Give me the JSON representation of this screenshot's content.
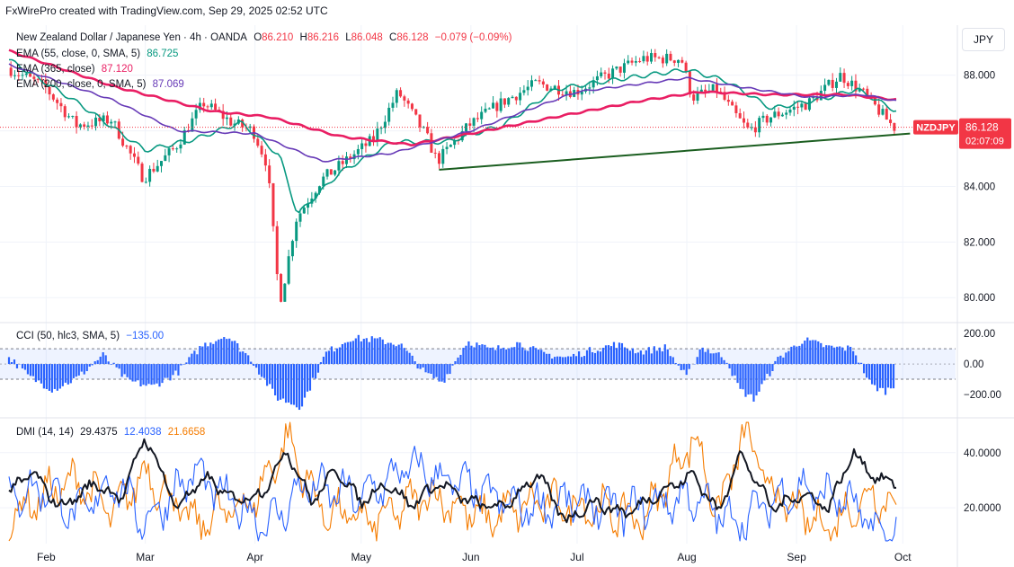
{
  "header": {
    "credit": "FxWirePro created with TradingView.com, Sep 29, 2025 02:52 UTC"
  },
  "legend": {
    "symbol_line": "New Zealand Dollar / Japanese Yen · 4h · OANDA",
    "open_label": "O",
    "open": "86.210",
    "high_label": "H",
    "high": "86.216",
    "low_label": "L",
    "low": "86.048",
    "close_label": "C",
    "close": "86.128",
    "change": "−0.079 (−0.09%)",
    "ema55_label": "EMA (55, close, 0, SMA, 5)",
    "ema55_value": "86.725",
    "ema365_label": "EMA (365, close)",
    "ema365_value": "87.120",
    "ema200_label": "EMA (200, close, 0, SMA, 5)",
    "ema200_value": "87.069",
    "cci_label": "CCI (50, hlc3, SMA, 5)",
    "cci_value": "−135.00",
    "dmi_label": "DMI (14, 14)",
    "dmi_adx": "29.4375",
    "dmi_plus": "12.4038",
    "dmi_minus": "21.6658"
  },
  "currency_button": "JPY",
  "price_tag": {
    "symbol": "NZDJPY",
    "price": "86.128",
    "countdown": "02:07:09"
  },
  "colors": {
    "up": "#089981",
    "down": "#f23645",
    "ema55": "#089981",
    "ema365": "#e91e63",
    "ema200": "#673ab7",
    "trendline": "#1b5e20",
    "cci": "#2962ff",
    "adx": "#131722",
    "di_plus": "#2962ff",
    "di_minus": "#f57c00",
    "grid": "#f0f3fa"
  },
  "chart_data": [
    {
      "type": "candlestick",
      "title": "New Zealand Dollar / Japanese Yen · 4h · OANDA",
      "x_ticks": [
        "Feb",
        "Mar",
        "Apr",
        "May",
        "Jun",
        "Jul",
        "Aug",
        "Sep",
        "Oct"
      ],
      "y_ticks": [
        "80.000",
        "82.000",
        "84.000",
        "86.000",
        "88.000"
      ],
      "ylim": [
        79.2,
        89.8
      ],
      "close_path_approx": [
        {
          "x": "Jan 21",
          "y": 88.3
        },
        {
          "x": "Feb 01",
          "y": 87.6
        },
        {
          "x": "Feb 10",
          "y": 86.2
        },
        {
          "x": "Feb 20",
          "y": 86.4
        },
        {
          "x": "Mar 01",
          "y": 84.3
        },
        {
          "x": "Mar 10",
          "y": 85.4
        },
        {
          "x": "Mar 18",
          "y": 87.0
        },
        {
          "x": "Mar 26",
          "y": 86.3
        },
        {
          "x": "Apr 01",
          "y": 86.0
        },
        {
          "x": "Apr 05",
          "y": 84.8
        },
        {
          "x": "Apr 08",
          "y": 80.5
        },
        {
          "x": "Apr 09",
          "y": 80.0
        },
        {
          "x": "Apr 13",
          "y": 82.8
        },
        {
          "x": "Apr 20",
          "y": 84.2
        },
        {
          "x": "Apr 30",
          "y": 85.2
        },
        {
          "x": "May 05",
          "y": 85.7
        },
        {
          "x": "May 12",
          "y": 87.4
        },
        {
          "x": "May 20",
          "y": 85.8
        },
        {
          "x": "May 23",
          "y": 84.9
        },
        {
          "x": "Jun 01",
          "y": 86.2
        },
        {
          "x": "Jun 10",
          "y": 87.0
        },
        {
          "x": "Jun 20",
          "y": 87.7
        },
        {
          "x": "Jul 01",
          "y": 87.4
        },
        {
          "x": "Jul 10",
          "y": 88.0
        },
        {
          "x": "Jul 20",
          "y": 88.6
        },
        {
          "x": "Jul 31",
          "y": 88.6
        },
        {
          "x": "Aug 03",
          "y": 87.2
        },
        {
          "x": "Aug 10",
          "y": 87.5
        },
        {
          "x": "Aug 15",
          "y": 86.6
        },
        {
          "x": "Aug 19",
          "y": 86.0
        },
        {
          "x": "Aug 25",
          "y": 86.5
        },
        {
          "x": "Sep 05",
          "y": 87.0
        },
        {
          "x": "Sep 14",
          "y": 88.0
        },
        {
          "x": "Sep 20",
          "y": 87.4
        },
        {
          "x": "Sep 29",
          "y": 86.13
        }
      ],
      "series": [
        {
          "name": "EMA (55, close, 0, SMA, 5)",
          "values": [
            {
              "x": "Jan 21",
              "y": 88.6
            },
            {
              "x": "Feb 10",
              "y": 87.0
            },
            {
              "x": "Mar 01",
              "y": 85.3
            },
            {
              "x": "Mar 15",
              "y": 85.7
            },
            {
              "x": "Mar 28",
              "y": 86.3
            },
            {
              "x": "Apr 08",
              "y": 85.1
            },
            {
              "x": "Apr 13",
              "y": 83.0
            },
            {
              "x": "Apr 25",
              "y": 84.5
            },
            {
              "x": "May 10",
              "y": 85.6
            },
            {
              "x": "May 25",
              "y": 85.6
            },
            {
              "x": "Jun 10",
              "y": 86.2
            },
            {
              "x": "Jun 25",
              "y": 87.5
            },
            {
              "x": "Jul 15",
              "y": 87.9
            },
            {
              "x": "Aug 01",
              "y": 88.2
            },
            {
              "x": "Aug 12",
              "y": 87.8
            },
            {
              "x": "Aug 25",
              "y": 86.8
            },
            {
              "x": "Sep 10",
              "y": 87.2
            },
            {
              "x": "Sep 18",
              "y": 87.5
            },
            {
              "x": "Sep 29",
              "y": 86.725
            }
          ]
        },
        {
          "name": "EMA (365, close)",
          "values": [
            {
              "x": "Jan 21",
              "y": 88.9
            },
            {
              "x": "Feb 20",
              "y": 87.6
            },
            {
              "x": "Mar 20",
              "y": 86.7
            },
            {
              "x": "Apr 05",
              "y": 86.5
            },
            {
              "x": "Apr 25",
              "y": 85.8
            },
            {
              "x": "May 15",
              "y": 85.5
            },
            {
              "x": "Jun 01",
              "y": 85.9
            },
            {
              "x": "Jun 25",
              "y": 86.5
            },
            {
              "x": "Jul 20",
              "y": 87.1
            },
            {
              "x": "Aug 05",
              "y": 87.4
            },
            {
              "x": "Aug 25",
              "y": 87.3
            },
            {
              "x": "Sep 15",
              "y": 87.3
            },
            {
              "x": "Sep 29",
              "y": 87.12
            }
          ]
        },
        {
          "name": "EMA (200, close, 0, SMA, 5)",
          "values": [
            {
              "x": "Jan 21",
              "y": 88.4
            },
            {
              "x": "Feb 20",
              "y": 87.1
            },
            {
              "x": "Mar 10",
              "y": 86.0
            },
            {
              "x": "Apr 01",
              "y": 85.9
            },
            {
              "x": "Apr 20",
              "y": 84.9
            },
            {
              "x": "May 10",
              "y": 85.2
            },
            {
              "x": "Jun 01",
              "y": 86.0
            },
            {
              "x": "Jul 01",
              "y": 87.4
            },
            {
              "x": "Aug 01",
              "y": 87.9
            },
            {
              "x": "Aug 15",
              "y": 87.6
            },
            {
              "x": "Sep 05",
              "y": 87.2
            },
            {
              "x": "Sep 20",
              "y": 87.3
            },
            {
              "x": "Sep 29",
              "y": 87.069
            }
          ]
        }
      ],
      "trendline": {
        "from": {
          "x": "May 23",
          "y": 84.6
        },
        "to": {
          "x": "Sep 29",
          "y": 85.9
        }
      },
      "last_price_line": 86.128
    },
    {
      "type": "bar",
      "title": "CCI (50, hlc3, SMA, 5)",
      "y_ticks": [
        "200.00",
        "0.00",
        "−200.00"
      ],
      "ylim": [
        -330,
        260
      ],
      "bands": [
        100,
        -100
      ],
      "values_approx": [
        {
          "x": "Jan 21",
          "y": 60
        },
        {
          "x": "Jan 27",
          "y": -80
        },
        {
          "x": "Feb 03",
          "y": -170
        },
        {
          "x": "Feb 10",
          "y": -90
        },
        {
          "x": "Feb 17",
          "y": 60
        },
        {
          "x": "Feb 24",
          "y": -110
        },
        {
          "x": "Mar 03",
          "y": -150
        },
        {
          "x": "Mar 10",
          "y": -60
        },
        {
          "x": "Mar 17",
          "y": 120
        },
        {
          "x": "Mar 24",
          "y": 190
        },
        {
          "x": "Mar 31",
          "y": 30
        },
        {
          "x": "Apr 07",
          "y": -220
        },
        {
          "x": "Apr 14",
          "y": -280
        },
        {
          "x": "Apr 21",
          "y": 70
        },
        {
          "x": "Apr 28",
          "y": 170
        },
        {
          "x": "May 05",
          "y": 160
        },
        {
          "x": "May 12",
          "y": 130
        },
        {
          "x": "May 19",
          "y": -60
        },
        {
          "x": "May 24",
          "y": -120
        },
        {
          "x": "May 31",
          "y": 150
        },
        {
          "x": "Jun 07",
          "y": 90
        },
        {
          "x": "Jun 14",
          "y": 140
        },
        {
          "x": "Jun 21",
          "y": 70
        },
        {
          "x": "Jun 28",
          "y": 40
        },
        {
          "x": "Jul 05",
          "y": 90
        },
        {
          "x": "Jul 12",
          "y": 130
        },
        {
          "x": "Jul 19",
          "y": 80
        },
        {
          "x": "Jul 26",
          "y": 110
        },
        {
          "x": "Aug 01",
          "y": -90
        },
        {
          "x": "Aug 05",
          "y": 110
        },
        {
          "x": "Aug 12",
          "y": 40
        },
        {
          "x": "Aug 16",
          "y": -170
        },
        {
          "x": "Aug 20",
          "y": -230
        },
        {
          "x": "Aug 27",
          "y": 40
        },
        {
          "x": "Sep 03",
          "y": 160
        },
        {
          "x": "Sep 10",
          "y": 110
        },
        {
          "x": "Sep 17",
          "y": 100
        },
        {
          "x": "Sep 22",
          "y": -140
        },
        {
          "x": "Sep 26",
          "y": -180
        },
        {
          "x": "Sep 29",
          "y": -135
        }
      ]
    },
    {
      "type": "line",
      "title": "DMI (14, 14)",
      "y_ticks": [
        "20.0000",
        "40.0000"
      ],
      "ylim": [
        7,
        52
      ],
      "series": [
        {
          "name": "ADX",
          "values": [
            {
              "x": "Jan 21",
              "y": 25
            },
            {
              "x": "Jan 28",
              "y": 33
            },
            {
              "x": "Feb 05",
              "y": 20
            },
            {
              "x": "Feb 15",
              "y": 29
            },
            {
              "x": "Feb 22",
              "y": 23
            },
            {
              "x": "Mar 01",
              "y": 46
            },
            {
              "x": "Mar 10",
              "y": 20
            },
            {
              "x": "Mar 18",
              "y": 31
            },
            {
              "x": "Mar 26",
              "y": 23
            },
            {
              "x": "Apr 03",
              "y": 25
            },
            {
              "x": "Apr 10",
              "y": 41
            },
            {
              "x": "Apr 17",
              "y": 22
            },
            {
              "x": "Apr 24",
              "y": 34
            },
            {
              "x": "May 01",
              "y": 22
            },
            {
              "x": "May 08",
              "y": 29
            },
            {
              "x": "May 15",
              "y": 21
            },
            {
              "x": "May 23",
              "y": 29
            },
            {
              "x": "Jun 01",
              "y": 22
            },
            {
              "x": "Jun 10",
              "y": 20
            },
            {
              "x": "Jun 20",
              "y": 32
            },
            {
              "x": "Jun 28",
              "y": 15
            },
            {
              "x": "Jul 05",
              "y": 22
            },
            {
              "x": "Jul 15",
              "y": 18
            },
            {
              "x": "Jul 25",
              "y": 26
            },
            {
              "x": "Aug 03",
              "y": 32
            },
            {
              "x": "Aug 10",
              "y": 18
            },
            {
              "x": "Aug 16",
              "y": 40
            },
            {
              "x": "Aug 25",
              "y": 20
            },
            {
              "x": "Sep 03",
              "y": 25
            },
            {
              "x": "Sep 10",
              "y": 20
            },
            {
              "x": "Sep 17",
              "y": 40
            },
            {
              "x": "Sep 24",
              "y": 30
            },
            {
              "x": "Sep 29",
              "y": 29.4375
            }
          ]
        },
        {
          "name": "+DI",
          "values": [
            {
              "x": "Jan 21",
              "y": 24
            },
            {
              "x": "Feb 01",
              "y": 27
            },
            {
              "x": "Feb 10",
              "y": 17
            },
            {
              "x": "Feb 20",
              "y": 30
            },
            {
              "x": "Mar 01",
              "y": 15
            },
            {
              "x": "Mar 15",
              "y": 33
            },
            {
              "x": "Mar 25",
              "y": 22
            },
            {
              "x": "Apr 05",
              "y": 14
            },
            {
              "x": "Apr 15",
              "y": 28
            },
            {
              "x": "May 01",
              "y": 24
            },
            {
              "x": "May 15",
              "y": 35
            },
            {
              "x": "Jun 01",
              "y": 27
            },
            {
              "x": "Jun 15",
              "y": 20
            },
            {
              "x": "Jul 01",
              "y": 22
            },
            {
              "x": "Jul 15",
              "y": 19
            },
            {
              "x": "Aug 01",
              "y": 24
            },
            {
              "x": "Aug 15",
              "y": 15
            },
            {
              "x": "Sep 01",
              "y": 27
            },
            {
              "x": "Sep 15",
              "y": 23
            },
            {
              "x": "Sep 25",
              "y": 10
            },
            {
              "x": "Sep 29",
              "y": 12.4038
            }
          ]
        },
        {
          "name": "−DI",
          "values": [
            {
              "x": "Jan 21",
              "y": 16
            },
            {
              "x": "Feb 01",
              "y": 25
            },
            {
              "x": "Feb 10",
              "y": 30
            },
            {
              "x": "Feb 20",
              "y": 18
            },
            {
              "x": "Mar 01",
              "y": 33
            },
            {
              "x": "Mar 15",
              "y": 14
            },
            {
              "x": "Apr 01",
              "y": 23
            },
            {
              "x": "Apr 10",
              "y": 45
            },
            {
              "x": "Apr 20",
              "y": 19
            },
            {
              "x": "May 05",
              "y": 15
            },
            {
              "x": "May 20",
              "y": 25
            },
            {
              "x": "Jun 05",
              "y": 16
            },
            {
              "x": "Jun 20",
              "y": 22
            },
            {
              "x": "Jul 05",
              "y": 20
            },
            {
              "x": "Jul 20",
              "y": 16
            },
            {
              "x": "Aug 03",
              "y": 46
            },
            {
              "x": "Aug 10",
              "y": 18
            },
            {
              "x": "Aug 17",
              "y": 47
            },
            {
              "x": "Aug 27",
              "y": 22
            },
            {
              "x": "Sep 10",
              "y": 13
            },
            {
              "x": "Sep 22",
              "y": 25
            },
            {
              "x": "Sep 29",
              "y": 21.6658
            }
          ]
        }
      ]
    }
  ]
}
